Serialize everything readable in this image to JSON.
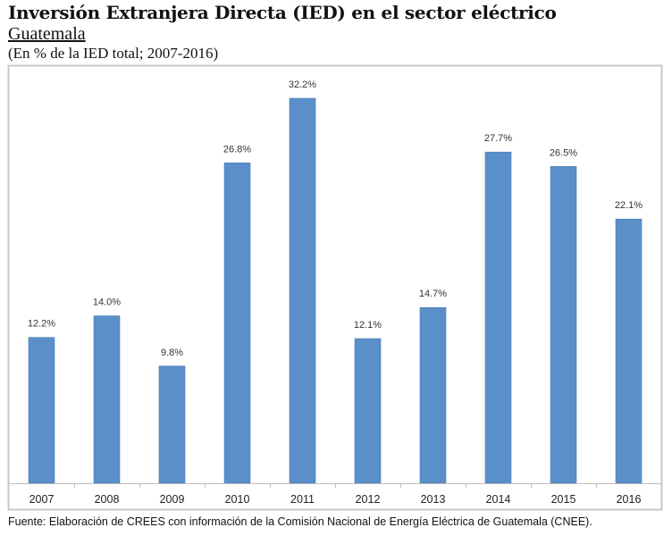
{
  "header": {
    "title": "Inversión Extranjera Directa (IED) en el sector eléctrico",
    "subtitle": "Guatemala",
    "units": "(En % de la IED total; 2007-2016)"
  },
  "footer": {
    "source": "Fuente: Elaboración de CREES con información de la Comisión Nacional de Energía Eléctrica de Guatemala (CNEE)."
  },
  "colors": {
    "bar": "#5b8fc9",
    "bar_edge": "#4a7db8",
    "frame": "#c8c8c8",
    "axis": "#bfbfbf"
  },
  "chart_data": {
    "type": "bar",
    "title": "Inversión Extranjera Directa (IED) en el sector eléctrico",
    "subtitle": "Guatemala",
    "xlabel": "",
    "ylabel": "% de la IED total",
    "categories": [
      "2007",
      "2008",
      "2009",
      "2010",
      "2011",
      "2012",
      "2013",
      "2014",
      "2015",
      "2016"
    ],
    "values": [
      12.2,
      14.0,
      9.8,
      26.8,
      32.2,
      12.1,
      14.7,
      27.7,
      26.5,
      22.1
    ],
    "data_labels": [
      "12.2%",
      "14.0%",
      "9.8%",
      "26.8%",
      "32.2%",
      "12.1%",
      "14.7%",
      "27.7%",
      "26.5%",
      "22.1%"
    ],
    "ylim": [
      0,
      32.2
    ],
    "grid": false,
    "legend": "none"
  }
}
